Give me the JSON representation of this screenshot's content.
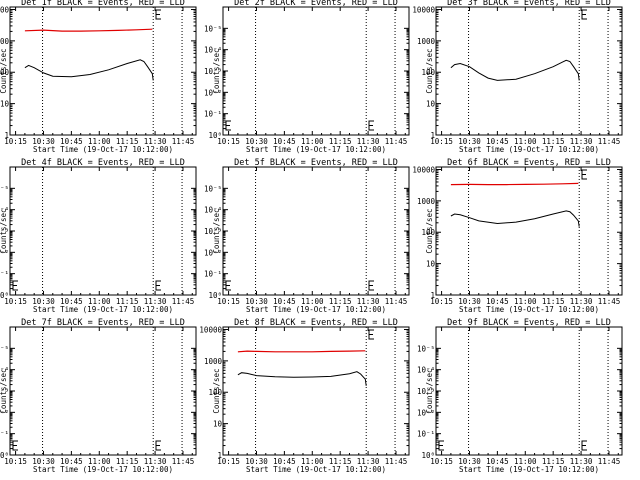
{
  "colors": {
    "events": "#000000",
    "lld": "#e00000",
    "background": "#ffffff"
  },
  "x_axis": {
    "label": "Start Time (19-Oct-17 10:12:00)",
    "ticks": [
      {
        "label": "10:15",
        "min": 15
      },
      {
        "label": "10:30",
        "min": 30
      },
      {
        "label": "10:45",
        "min": 45
      },
      {
        "label": "11:00",
        "min": 60
      },
      {
        "label": "11:15",
        "min": 75
      },
      {
        "label": "11:30",
        "min": 90
      },
      {
        "label": "11:45",
        "min": 105
      }
    ],
    "range_min": [
      12,
      112
    ]
  },
  "y_axis_label": "Counts/sec",
  "chart_data": [
    {
      "type": "line",
      "title": "Det 1f BLACK = Events, RED = LLD",
      "ylim": [
        1,
        12000
      ],
      "yticks": [
        "1",
        "10",
        "100",
        "1000",
        "10000"
      ],
      "vlines_min": [
        29.5,
        89.0,
        104.5
      ],
      "end_marker_min": 90.5,
      "series": [
        {
          "name": "Events",
          "x": [
            20,
            22,
            25,
            30,
            35,
            45,
            55,
            65,
            75,
            82,
            84,
            86,
            88.5,
            89
          ],
          "y": [
            140,
            165,
            140,
            95,
            75,
            72,
            85,
            120,
            190,
            250,
            220,
            150,
            90,
            55
          ]
        },
        {
          "name": "LLD",
          "x": [
            20,
            30,
            40,
            50,
            60,
            70,
            80,
            88.5
          ],
          "y": [
            2100,
            2200,
            2050,
            2050,
            2100,
            2150,
            2250,
            2350
          ]
        }
      ]
    },
    {
      "type": "line",
      "title": "Det 2f BLACK = Events, RED = LLD",
      "ylim": [
        1,
        1000000
      ],
      "yticks": [
        "10⁰",
        "10⁻¹",
        "10⁻²",
        "10⁻³",
        "10⁻⁴",
        "10⁻⁵"
      ],
      "vlines_min": [
        29.5,
        89.0,
        104.5
      ],
      "end_marker_min": 90.5,
      "series": []
    },
    {
      "type": "line",
      "title": "Det 3f BLACK = Events, RED = LLD",
      "ylim": [
        1,
        12000
      ],
      "yticks": [
        "1",
        "10",
        "100",
        "1000",
        "10000"
      ],
      "vlines_min": [
        29.5,
        89.0,
        104.5
      ],
      "end_marker_min": 90.5,
      "series": [
        {
          "name": "Events",
          "x": [
            20,
            22,
            25,
            30,
            35,
            40,
            45,
            55,
            65,
            75,
            80,
            82,
            84,
            86,
            88.5,
            89
          ],
          "y": [
            140,
            175,
            190,
            150,
            95,
            65,
            55,
            60,
            90,
            150,
            210,
            240,
            220,
            150,
            90,
            55
          ]
        }
      ]
    },
    {
      "type": "line",
      "title": "Det 4f BLACK = Events, RED = LLD",
      "ylim": [
        1,
        1000000
      ],
      "yticks": [
        "10⁰",
        "10⁻¹",
        "10⁻²",
        "10⁻³",
        "10⁻⁴",
        "10⁻⁵"
      ],
      "vlines_min": [
        29.5,
        89.0,
        104.5
      ],
      "end_marker_min": 90.5,
      "series": []
    },
    {
      "type": "line",
      "title": "Det 5f BLACK = Events, RED = LLD",
      "ylim": [
        1,
        1000000
      ],
      "yticks": [
        "10⁰",
        "10⁻¹",
        "10⁻²",
        "10⁻³",
        "10⁻⁴",
        "10⁻⁵"
      ],
      "vlines_min": [
        29.5,
        89.0,
        104.5
      ],
      "end_marker_min": 90.5,
      "series": []
    },
    {
      "type": "line",
      "title": "Det 6f BLACK = Events, RED = LLD",
      "ylim": [
        1,
        12000
      ],
      "yticks": [
        "1",
        "10",
        "100",
        "1000",
        "10000"
      ],
      "vlines_min": [
        29.5,
        89.0,
        104.5
      ],
      "end_marker_min": 90.5,
      "series": [
        {
          "name": "Events",
          "x": [
            20,
            22,
            25,
            30,
            35,
            45,
            55,
            65,
            75,
            82,
            84,
            86,
            88.5,
            89
          ],
          "y": [
            330,
            380,
            360,
            290,
            230,
            190,
            210,
            270,
            380,
            480,
            450,
            350,
            230,
            150
          ]
        },
        {
          "name": "LLD",
          "x": [
            20,
            30,
            40,
            50,
            60,
            70,
            80,
            88.5
          ],
          "y": [
            3300,
            3350,
            3300,
            3300,
            3350,
            3400,
            3500,
            3600
          ]
        }
      ]
    },
    {
      "type": "line",
      "title": "Det 7f BLACK = Events, RED = LLD",
      "ylim": [
        1,
        1000000
      ],
      "yticks": [
        "10⁰",
        "10⁻¹",
        "10⁻²",
        "10⁻³",
        "10⁻⁴",
        "10⁻⁵"
      ],
      "vlines_min": [
        29.5,
        89.0,
        104.5
      ],
      "end_marker_min": 90.5,
      "series": []
    },
    {
      "type": "line",
      "title": "Det 8f BLACK = Events, RED = LLD",
      "ylim": [
        1,
        12000
      ],
      "yticks": [
        "1",
        "10",
        "100",
        "1000",
        "10000"
      ],
      "vlines_min": [
        29.5,
        89.0,
        104.5
      ],
      "end_marker_min": 90.5,
      "series": [
        {
          "name": "Events",
          "x": [
            20,
            22,
            25,
            30,
            40,
            50,
            60,
            70,
            80,
            84,
            86,
            88.5,
            89
          ],
          "y": [
            360,
            420,
            400,
            340,
            310,
            300,
            305,
            320,
            390,
            450,
            380,
            260,
            160
          ]
        },
        {
          "name": "LLD",
          "x": [
            20,
            25,
            30,
            40,
            50,
            60,
            70,
            80,
            88.5
          ],
          "y": [
            1950,
            2050,
            2000,
            1950,
            1950,
            1950,
            2000,
            2050,
            2100
          ]
        }
      ]
    },
    {
      "type": "line",
      "title": "Det 9f BLACK = Events, RED = LLD",
      "ylim": [
        1,
        1000000
      ],
      "yticks": [
        "10⁰",
        "10⁻¹",
        "10⁻²",
        "10⁻³",
        "10⁻⁴",
        "10⁻⁵"
      ],
      "vlines_min": [
        29.5,
        89.0,
        104.5
      ],
      "end_marker_min": 90.5,
      "series": []
    }
  ]
}
